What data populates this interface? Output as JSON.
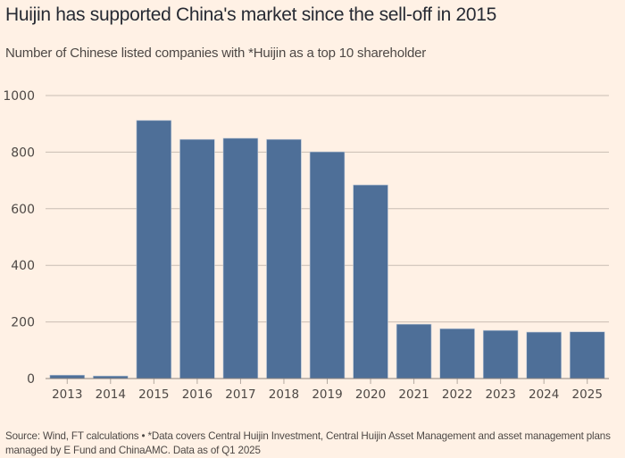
{
  "chart_data": {
    "type": "bar",
    "title": "Huijin has supported China's market since the sell-off in 2015",
    "subtitle": "Number of Chinese listed companies with *Huijin as a top 10 shareholder",
    "xlabel": "",
    "ylabel": "",
    "categories": [
      "2013",
      "2014",
      "2015",
      "2016",
      "2017",
      "2018",
      "2019",
      "2020",
      "2021",
      "2022",
      "2023",
      "2024",
      "2025"
    ],
    "values": [
      12,
      9,
      912,
      845,
      849,
      845,
      801,
      684,
      192,
      176,
      170,
      164,
      165
    ],
    "ylim": [
      0,
      1000
    ],
    "yticks": [
      0,
      200,
      400,
      600,
      800,
      1000
    ],
    "grid": true,
    "bar_color": "#4e6f98",
    "grid_color": "#c9bdb3",
    "footer": "Source: Wind, FT calculations • *Data covers Central Huijin Investment, Central Huijin Asset Management and asset management plans managed by E Fund and ChinaAMC. Data as of Q1 2025"
  }
}
